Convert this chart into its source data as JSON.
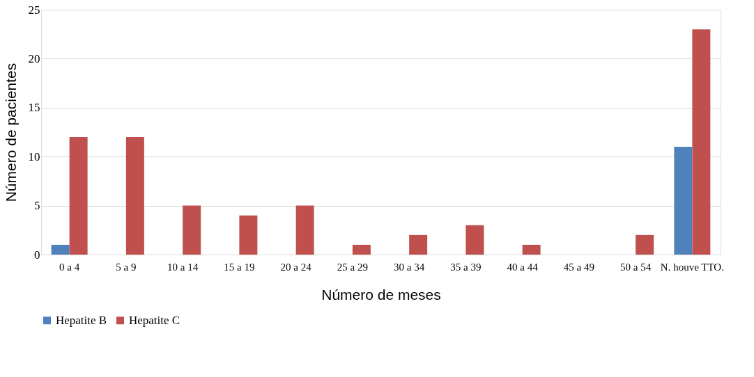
{
  "chart_data": {
    "type": "bar",
    "xlabel": "Número de meses",
    "ylabel": "Número de pacientes",
    "categories": [
      "0 a 4",
      "5 a 9",
      "10 a 14",
      "15 a 19",
      "20 a 24",
      "25 a 29",
      "30 a 34",
      "35 a 39",
      "40 a 44",
      "45 a 49",
      "50 a 54",
      "N. houve TTO."
    ],
    "series": [
      {
        "name": "Hepatite B",
        "color": "#4f81bd",
        "values": [
          1,
          0,
          0,
          0,
          0,
          0,
          0,
          0,
          0,
          0,
          0,
          11
        ]
      },
      {
        "name": "Hepatite C",
        "color": "#c0504d",
        "values": [
          12,
          12,
          5,
          4,
          5,
          1,
          2,
          3,
          1,
          0,
          2,
          23
        ]
      }
    ],
    "ylim": [
      0,
      25
    ],
    "yticks": [
      0,
      5,
      10,
      15,
      20,
      25
    ],
    "grid": "y",
    "legend": "bottom"
  }
}
